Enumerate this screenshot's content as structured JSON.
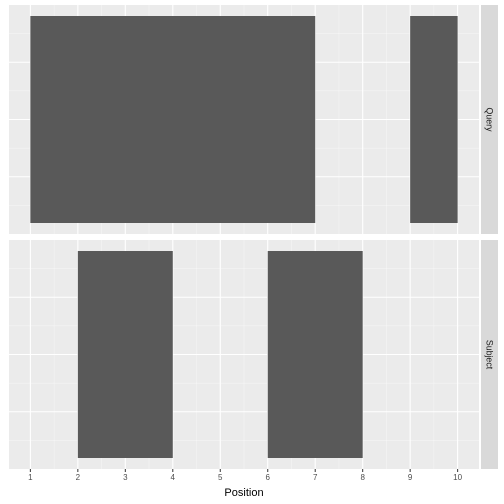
{
  "chart_data": {
    "type": "bar",
    "xlabel": "Position",
    "x_ticks": [
      1,
      2,
      3,
      4,
      5,
      6,
      7,
      8,
      9,
      10
    ],
    "xlim": [
      0.55,
      10.45
    ],
    "grid": true,
    "panels": [
      {
        "label": "Query",
        "segments": [
          {
            "start": 1,
            "end": 7
          },
          {
            "start": 9,
            "end": 10
          }
        ]
      },
      {
        "label": "Subject",
        "segments": [
          {
            "start": 2,
            "end": 4
          },
          {
            "start": 6,
            "end": 8
          }
        ]
      }
    ],
    "colors": {
      "panel_background": "#ebebeb",
      "grid_major": "#ffffff",
      "bar_fill": "#595959",
      "strip_background": "#d9d9d9"
    }
  }
}
